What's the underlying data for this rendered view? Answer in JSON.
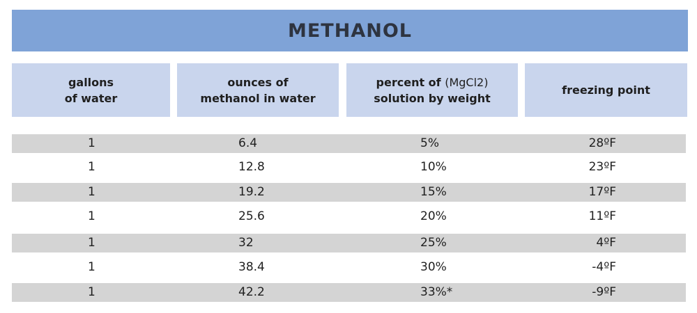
{
  "title": "METHANOL",
  "headers": [
    {
      "line1": "gallons",
      "line2": "of water"
    },
    {
      "line1": "ounces of",
      "line2": "methanol in water"
    },
    {
      "line1": "percent of",
      "line1_paren": "(MgCl2)",
      "line2": "solution by weight"
    },
    {
      "line1": "freezing point"
    }
  ],
  "rows": [
    {
      "gallons": "1",
      "ounces": "6.4",
      "percent": "5%",
      "freezing": "28ºF"
    },
    {
      "gallons": "1",
      "ounces": "12.8",
      "percent": "10%",
      "freezing": "23ºF"
    },
    {
      "gallons": "1",
      "ounces": "19.2",
      "percent": "15%",
      "freezing": "17ºF"
    },
    {
      "gallons": "1",
      "ounces": "25.6",
      "percent": "20%",
      "freezing": "11ºF"
    },
    {
      "gallons": "1",
      "ounces": "32",
      "percent": "25%",
      "freezing": "4ºF"
    },
    {
      "gallons": "1",
      "ounces": "38.4",
      "percent": "30%",
      "freezing": "-4ºF"
    },
    {
      "gallons": "1",
      "ounces": "42.2",
      "percent": "33%*",
      "freezing": "-9ºF"
    }
  ],
  "colors": {
    "title_bg": "#7fa3d7",
    "header_bg": "#c9d5ed",
    "row_shade": "#d4d4d4"
  }
}
